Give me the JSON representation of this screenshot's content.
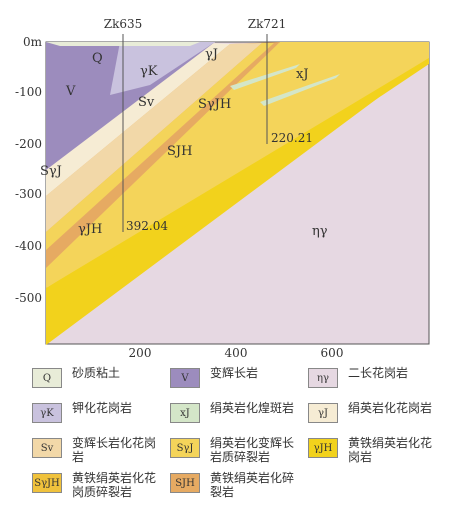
{
  "boreholes": [
    {
      "id": "Zk635",
      "depth_label": "392.04"
    },
    {
      "id": "Zk721",
      "depth_label": "220.21"
    }
  ],
  "y_axis": {
    "unit_label": "0m",
    "ticks": [
      "-100",
      "-200",
      "-300",
      "-400",
      "-500"
    ]
  },
  "x_axis": {
    "ticks": [
      "200",
      "400",
      "600"
    ]
  },
  "unit_labels": [
    "Q",
    "V",
    "γK",
    "γJ",
    "Sv",
    "SγJH",
    "xJ",
    "SγJ",
    "SJH",
    "γJH",
    "ηγ"
  ],
  "legend": [
    {
      "code": "Q",
      "label": "砂质粘土",
      "color": "#e8ecd8"
    },
    {
      "code": "V",
      "label": "变辉长岩",
      "color": "#9c8cbd"
    },
    {
      "code": "ηγ",
      "label": "二长花岗岩",
      "color": "#e6d8e2"
    },
    {
      "code": "γK",
      "label": "钾化花岗岩",
      "color": "#c9c2de"
    },
    {
      "code": "xJ",
      "label": "绢英岩化煌斑岩",
      "color": "#d4e6c8"
    },
    {
      "code": "γJ",
      "label": "绢英岩化花岗岩",
      "color": "#f6ecd4"
    },
    {
      "code": "Sv",
      "label": "变辉长岩化花岗岩",
      "color": "#f2d8a8"
    },
    {
      "code": "SγJ",
      "label": "绢英岩化变辉长岩质碎裂岩",
      "color": "#f4d45a"
    },
    {
      "code": "γJH",
      "label": "黄铁绢英岩化花岗岩",
      "color": "#f2d21c"
    },
    {
      "code": "SγJH",
      "label": "黄铁绢英岩化花岗质碎裂岩",
      "color": "#f0c23c"
    },
    {
      "code": "SJH",
      "label": "黄铁绢英岩化碎裂岩",
      "color": "#e6aa62"
    }
  ]
}
